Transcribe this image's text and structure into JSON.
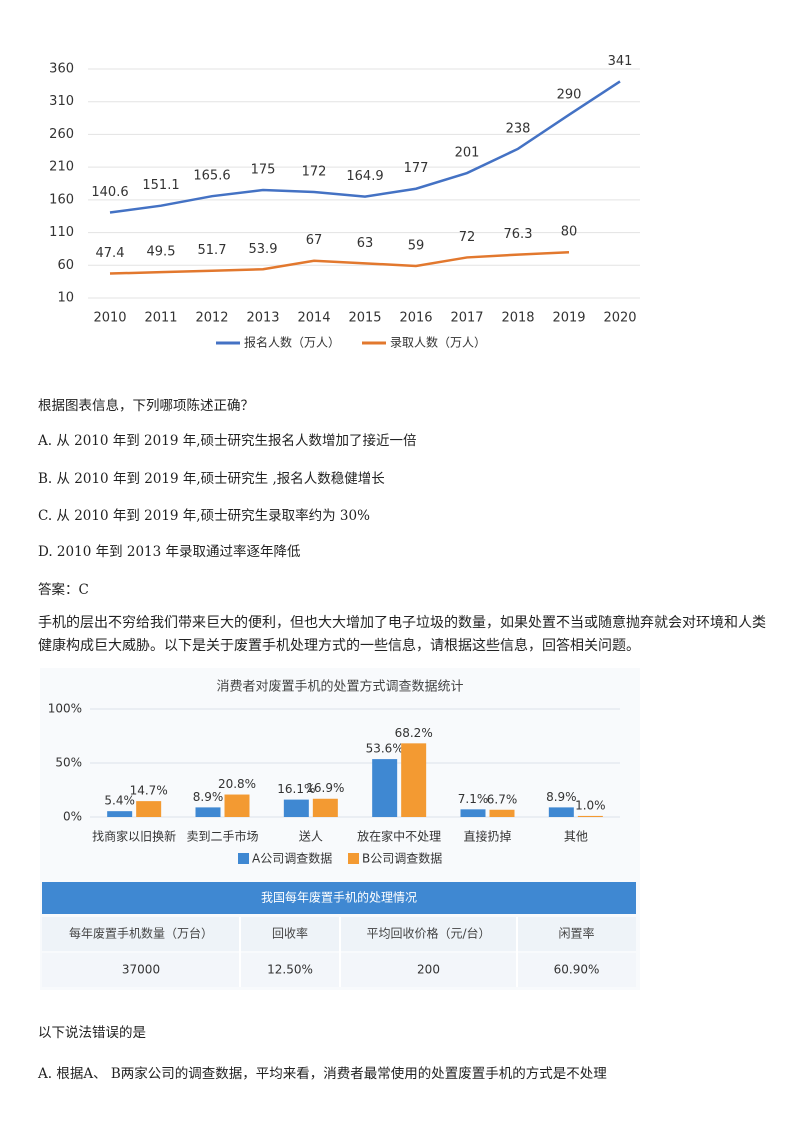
{
  "chart_data": [
    {
      "type": "line",
      "categories": [
        "2010",
        "2011",
        "2012",
        "2013",
        "2014",
        "2015",
        "2016",
        "2017",
        "2018",
        "2019",
        "2020"
      ],
      "series": [
        {
          "name": "报名人数（万人）",
          "color": "#4472c4",
          "values": [
            140.6,
            151.1,
            165.6,
            175,
            172,
            164.9,
            177,
            201,
            238,
            290,
            341
          ]
        },
        {
          "name": "录取人数（万人）",
          "color": "#e2782e",
          "values": [
            47.4,
            49.5,
            51.7,
            53.9,
            67,
            63,
            59,
            72,
            76.3,
            80,
            null
          ]
        }
      ],
      "ylim": [
        10,
        360
      ],
      "yticks": [
        10,
        60,
        110,
        160,
        210,
        260,
        310,
        360
      ],
      "grid": true
    },
    {
      "type": "bar",
      "title": "消费者对废置手机的处置方式调查数据统计",
      "categories": [
        "找商家以旧换新",
        "卖到二手市场",
        "送人",
        "放在家中不处理",
        "直接扔掉",
        "其他"
      ],
      "series": [
        {
          "name": "A公司调查数据",
          "color": "#3f88d2",
          "values": [
            5.4,
            8.9,
            16.1,
            53.6,
            7.1,
            8.9
          ],
          "value_labels": [
            "5.4%",
            "8.9%",
            "16.1%",
            "53.6%",
            "7.1%",
            "8.9%"
          ]
        },
        {
          "name": "B公司调查数据",
          "color": "#f39a32",
          "values": [
            14.7,
            20.8,
            16.9,
            68.2,
            6.7,
            1.0
          ],
          "value_labels": [
            "14.7%",
            "20.8%",
            "16.9%",
            "68.2%",
            "6.7%",
            "1.0%"
          ]
        }
      ],
      "ylim": [
        0,
        100
      ],
      "yticks": [
        {
          "value": 0,
          "label": "0%"
        },
        {
          "value": 50,
          "label": "50%"
        },
        {
          "value": 100,
          "label": "100%"
        }
      ],
      "grid": true
    }
  ],
  "question1": {
    "prompt": "根据图表信息，下列哪项陈述正确？",
    "options": [
      "A. 从 2010 年到 2019 年,硕士研究生报名人数增加了接近一倍",
      "B. 从 2010 年到 2019 年,硕士研究生 ,报名人数稳健增长",
      "C. 从 2010 年到 2019 年,硕士研究生录取率约为 30%",
      "D. 2010 年到 2013 年录取通过率逐年降低"
    ],
    "answer": "答案：C"
  },
  "passage": "手机的层出不穷给我们带来巨大的便利，但也大大增加了电子垃圾的数量，如果处置不当或随意抛弃就会对环境和人类健康构成巨大威胁。以下是关于废置手机处理方式的一些信息，请根据这些信息，回答相关问题。",
  "table": {
    "title": "我国每年废置手机的处理情况",
    "header": [
      "每年废置手机数量（万台）",
      "回收率",
      "平均回收价格（元/台）",
      "闲置率"
    ],
    "rows": [
      [
        "37000",
        "12.50%",
        "200",
        "60.90%"
      ]
    ]
  },
  "question2": {
    "prompt": "以下说法错误的是",
    "options": [
      "A. 根据A、 B两家公司的调查数据，平均来看，消费者最常使用的处置废置手机的方式是不处理"
    ]
  }
}
